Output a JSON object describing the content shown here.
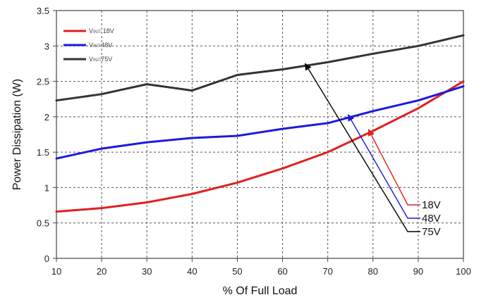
{
  "chart_data": {
    "type": "line",
    "title": "",
    "xlabel": "% Of Full Load",
    "ylabel": "Power Dissipation (W)",
    "xlim": [
      10,
      100
    ],
    "ylim": [
      0,
      3.5
    ],
    "x_ticks": [
      10,
      20,
      30,
      40,
      50,
      60,
      70,
      80,
      90,
      100
    ],
    "y_ticks": [
      0,
      0.5,
      1,
      1.5,
      2,
      2.5,
      3,
      3.5
    ],
    "y_tick_labels": [
      "0",
      "0.5",
      "1",
      "1.5",
      "2",
      "2.5",
      "3",
      "3.5"
    ],
    "grid": true,
    "legend_position": "top-left",
    "legend_prefix": "V",
    "legend_sub": "IN",
    "series": [
      {
        "name": "VIN=18V",
        "legend_suffix": "= 18V",
        "color": "#e02020",
        "x": [
          10,
          20,
          30,
          40,
          50,
          60,
          70,
          80,
          90,
          100
        ],
        "values": [
          0.66,
          0.71,
          0.79,
          0.91,
          1.07,
          1.27,
          1.5,
          1.8,
          2.12,
          2.5
        ]
      },
      {
        "name": "VIN=48V",
        "legend_suffix": "=48V",
        "color": "#1a1ae0",
        "x": [
          10,
          20,
          30,
          40,
          50,
          60,
          70,
          80,
          90,
          100
        ],
        "values": [
          1.41,
          1.55,
          1.64,
          1.7,
          1.73,
          1.83,
          1.91,
          2.08,
          2.23,
          2.43
        ]
      },
      {
        "name": "VIN=75V",
        "legend_suffix": "=75V",
        "color": "#333333",
        "x": [
          10,
          20,
          30,
          40,
          50,
          60,
          70,
          80,
          90,
          100
        ],
        "values": [
          2.23,
          2.32,
          2.46,
          2.37,
          2.59,
          2.67,
          2.77,
          2.89,
          3.0,
          3.15
        ]
      }
    ],
    "annotations": [
      {
        "text": "18V",
        "color": "#e02020",
        "target": [
          79,
          1.82
        ]
      },
      {
        "text": "48V",
        "color": "#1a1ae0",
        "target": [
          74.5,
          2.03
        ]
      },
      {
        "text": "75V",
        "color": "#000000",
        "target": [
          65,
          2.75
        ]
      }
    ]
  }
}
